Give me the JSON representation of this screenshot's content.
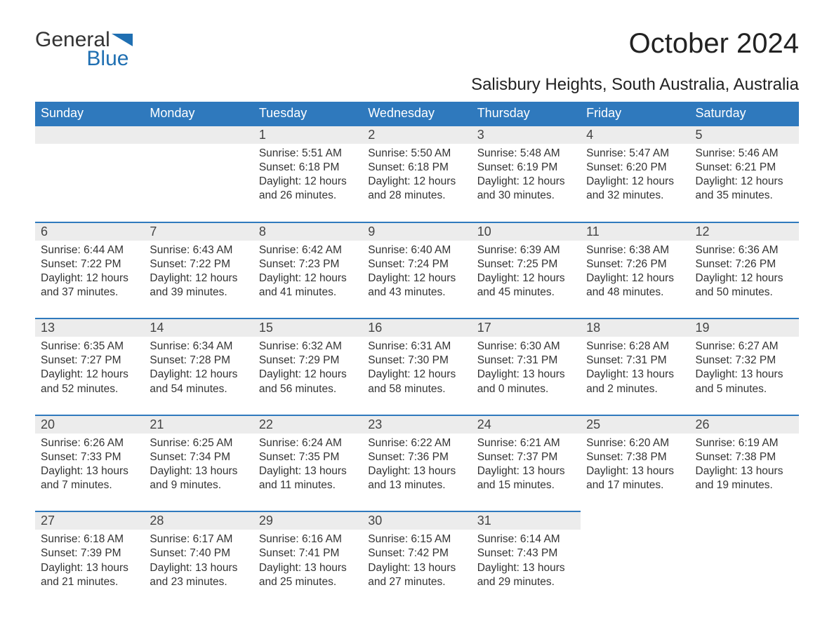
{
  "logo": {
    "text1": "General",
    "text2": "Blue"
  },
  "title": "October 2024",
  "subtitle": "Salisbury Heights, South Australia, Australia",
  "colors": {
    "header_bg": "#2f79bd",
    "header_text": "#ffffff",
    "daynum_bg": "#ececec",
    "row_border": "#2f79bd",
    "logo_blue": "#1f6fb2",
    "body_text": "#333333",
    "background": "#ffffff"
  },
  "weekdays": [
    "Sunday",
    "Monday",
    "Tuesday",
    "Wednesday",
    "Thursday",
    "Friday",
    "Saturday"
  ],
  "weeks": [
    [
      {
        "day": "",
        "sunrise": "",
        "sunset": "",
        "daylight": ""
      },
      {
        "day": "",
        "sunrise": "",
        "sunset": "",
        "daylight": ""
      },
      {
        "day": "1",
        "sunrise": "Sunrise: 5:51 AM",
        "sunset": "Sunset: 6:18 PM",
        "daylight": "Daylight: 12 hours and 26 minutes."
      },
      {
        "day": "2",
        "sunrise": "Sunrise: 5:50 AM",
        "sunset": "Sunset: 6:18 PM",
        "daylight": "Daylight: 12 hours and 28 minutes."
      },
      {
        "day": "3",
        "sunrise": "Sunrise: 5:48 AM",
        "sunset": "Sunset: 6:19 PM",
        "daylight": "Daylight: 12 hours and 30 minutes."
      },
      {
        "day": "4",
        "sunrise": "Sunrise: 5:47 AM",
        "sunset": "Sunset: 6:20 PM",
        "daylight": "Daylight: 12 hours and 32 minutes."
      },
      {
        "day": "5",
        "sunrise": "Sunrise: 5:46 AM",
        "sunset": "Sunset: 6:21 PM",
        "daylight": "Daylight: 12 hours and 35 minutes."
      }
    ],
    [
      {
        "day": "6",
        "sunrise": "Sunrise: 6:44 AM",
        "sunset": "Sunset: 7:22 PM",
        "daylight": "Daylight: 12 hours and 37 minutes."
      },
      {
        "day": "7",
        "sunrise": "Sunrise: 6:43 AM",
        "sunset": "Sunset: 7:22 PM",
        "daylight": "Daylight: 12 hours and 39 minutes."
      },
      {
        "day": "8",
        "sunrise": "Sunrise: 6:42 AM",
        "sunset": "Sunset: 7:23 PM",
        "daylight": "Daylight: 12 hours and 41 minutes."
      },
      {
        "day": "9",
        "sunrise": "Sunrise: 6:40 AM",
        "sunset": "Sunset: 7:24 PM",
        "daylight": "Daylight: 12 hours and 43 minutes."
      },
      {
        "day": "10",
        "sunrise": "Sunrise: 6:39 AM",
        "sunset": "Sunset: 7:25 PM",
        "daylight": "Daylight: 12 hours and 45 minutes."
      },
      {
        "day": "11",
        "sunrise": "Sunrise: 6:38 AM",
        "sunset": "Sunset: 7:26 PM",
        "daylight": "Daylight: 12 hours and 48 minutes."
      },
      {
        "day": "12",
        "sunrise": "Sunrise: 6:36 AM",
        "sunset": "Sunset: 7:26 PM",
        "daylight": "Daylight: 12 hours and 50 minutes."
      }
    ],
    [
      {
        "day": "13",
        "sunrise": "Sunrise: 6:35 AM",
        "sunset": "Sunset: 7:27 PM",
        "daylight": "Daylight: 12 hours and 52 minutes."
      },
      {
        "day": "14",
        "sunrise": "Sunrise: 6:34 AM",
        "sunset": "Sunset: 7:28 PM",
        "daylight": "Daylight: 12 hours and 54 minutes."
      },
      {
        "day": "15",
        "sunrise": "Sunrise: 6:32 AM",
        "sunset": "Sunset: 7:29 PM",
        "daylight": "Daylight: 12 hours and 56 minutes."
      },
      {
        "day": "16",
        "sunrise": "Sunrise: 6:31 AM",
        "sunset": "Sunset: 7:30 PM",
        "daylight": "Daylight: 12 hours and 58 minutes."
      },
      {
        "day": "17",
        "sunrise": "Sunrise: 6:30 AM",
        "sunset": "Sunset: 7:31 PM",
        "daylight": "Daylight: 13 hours and 0 minutes."
      },
      {
        "day": "18",
        "sunrise": "Sunrise: 6:28 AM",
        "sunset": "Sunset: 7:31 PM",
        "daylight": "Daylight: 13 hours and 2 minutes."
      },
      {
        "day": "19",
        "sunrise": "Sunrise: 6:27 AM",
        "sunset": "Sunset: 7:32 PM",
        "daylight": "Daylight: 13 hours and 5 minutes."
      }
    ],
    [
      {
        "day": "20",
        "sunrise": "Sunrise: 6:26 AM",
        "sunset": "Sunset: 7:33 PM",
        "daylight": "Daylight: 13 hours and 7 minutes."
      },
      {
        "day": "21",
        "sunrise": "Sunrise: 6:25 AM",
        "sunset": "Sunset: 7:34 PM",
        "daylight": "Daylight: 13 hours and 9 minutes."
      },
      {
        "day": "22",
        "sunrise": "Sunrise: 6:24 AM",
        "sunset": "Sunset: 7:35 PM",
        "daylight": "Daylight: 13 hours and 11 minutes."
      },
      {
        "day": "23",
        "sunrise": "Sunrise: 6:22 AM",
        "sunset": "Sunset: 7:36 PM",
        "daylight": "Daylight: 13 hours and 13 minutes."
      },
      {
        "day": "24",
        "sunrise": "Sunrise: 6:21 AM",
        "sunset": "Sunset: 7:37 PM",
        "daylight": "Daylight: 13 hours and 15 minutes."
      },
      {
        "day": "25",
        "sunrise": "Sunrise: 6:20 AM",
        "sunset": "Sunset: 7:38 PM",
        "daylight": "Daylight: 13 hours and 17 minutes."
      },
      {
        "day": "26",
        "sunrise": "Sunrise: 6:19 AM",
        "sunset": "Sunset: 7:38 PM",
        "daylight": "Daylight: 13 hours and 19 minutes."
      }
    ],
    [
      {
        "day": "27",
        "sunrise": "Sunrise: 6:18 AM",
        "sunset": "Sunset: 7:39 PM",
        "daylight": "Daylight: 13 hours and 21 minutes."
      },
      {
        "day": "28",
        "sunrise": "Sunrise: 6:17 AM",
        "sunset": "Sunset: 7:40 PM",
        "daylight": "Daylight: 13 hours and 23 minutes."
      },
      {
        "day": "29",
        "sunrise": "Sunrise: 6:16 AM",
        "sunset": "Sunset: 7:41 PM",
        "daylight": "Daylight: 13 hours and 25 minutes."
      },
      {
        "day": "30",
        "sunrise": "Sunrise: 6:15 AM",
        "sunset": "Sunset: 7:42 PM",
        "daylight": "Daylight: 13 hours and 27 minutes."
      },
      {
        "day": "31",
        "sunrise": "Sunrise: 6:14 AM",
        "sunset": "Sunset: 7:43 PM",
        "daylight": "Daylight: 13 hours and 29 minutes."
      },
      {
        "day": "",
        "sunrise": "",
        "sunset": "",
        "daylight": ""
      },
      {
        "day": "",
        "sunrise": "",
        "sunset": "",
        "daylight": ""
      }
    ]
  ]
}
